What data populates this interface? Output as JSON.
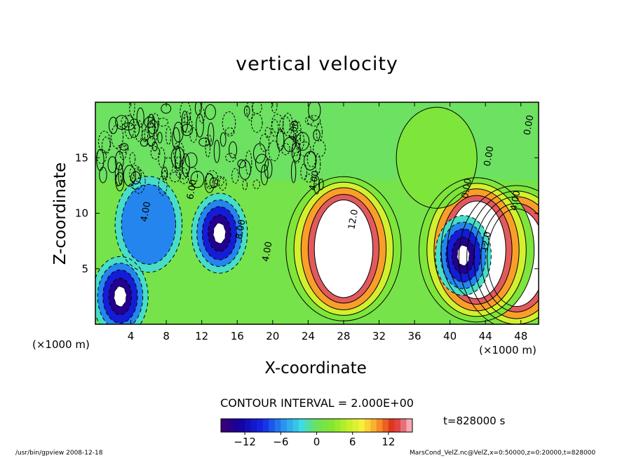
{
  "chart_data": {
    "type": "heatmap",
    "title": "vertical velocity",
    "xlabel": "X-coordinate",
    "ylabel": "Z-coordinate",
    "x_unit": "(×1000 m)",
    "xlim": [
      0,
      50
    ],
    "ylim": [
      0,
      20
    ],
    "x_ticks": [
      4,
      8,
      12,
      16,
      20,
      24,
      28,
      32,
      36,
      40,
      44,
      48
    ],
    "y_ticks": [
      5,
      10,
      15
    ],
    "contour_interval_label": "CONTOUR INTERVAL = 2.000E+00",
    "colorbar": {
      "min": -16,
      "max": 16,
      "ticks": [
        -12,
        -6,
        0,
        6,
        12
      ]
    },
    "contour_labels": [
      {
        "text": "4.00",
        "x": 5.8,
        "z": 9.2
      },
      {
        "text": "6.00",
        "x": 11.0,
        "z": 11.2
      },
      {
        "text": "8.00",
        "x": 16.5,
        "z": 7.6
      },
      {
        "text": "4.00",
        "x": 19.5,
        "z": 5.6
      },
      {
        "text": "4.00",
        "x": 22.5,
        "z": 16.5
      },
      {
        "text": "4.00",
        "x": 24.8,
        "z": 12.0
      },
      {
        "text": "12.0",
        "x": 29.2,
        "z": 8.5
      },
      {
        "text": "0.00",
        "x": 44.5,
        "z": 14.2
      },
      {
        "text": "0.00",
        "x": 42.0,
        "z": 11.3
      },
      {
        "text": "4.00",
        "x": 47.5,
        "z": 10.2
      },
      {
        "text": "12.0",
        "x": 44.2,
        "z": 6.5
      },
      {
        "text": "0.00",
        "x": 49.0,
        "z": 17.0
      }
    ],
    "features": [
      {
        "type": "updraft",
        "x": 28.0,
        "z": 6.8,
        "peak": 16
      },
      {
        "type": "updraft",
        "x": 47.5,
        "z": 6.0,
        "peak": 16
      },
      {
        "type": "updraft",
        "x": 43.0,
        "z": 6.7,
        "peak": 16
      },
      {
        "type": "updraft",
        "x": 38.5,
        "z": 15.0,
        "peak": 4
      },
      {
        "type": "downdraft",
        "x": 14.0,
        "z": 8.2,
        "peak": -16
      },
      {
        "type": "downdraft",
        "x": 41.5,
        "z": 6.2,
        "peak": -16
      },
      {
        "type": "downdraft",
        "x": 2.8,
        "z": 2.5,
        "peak": -16
      },
      {
        "type": "downdraft",
        "x": 6.0,
        "z": 9.0,
        "peak": -7
      }
    ]
  },
  "labels": {
    "time": "t=828000 s",
    "footer_left": "/usr/bin/gpview   2008-12-18",
    "footer_right": "MarsCond_VelZ.nc@VelZ,x=0:50000,z=0:20000,t=828000"
  }
}
